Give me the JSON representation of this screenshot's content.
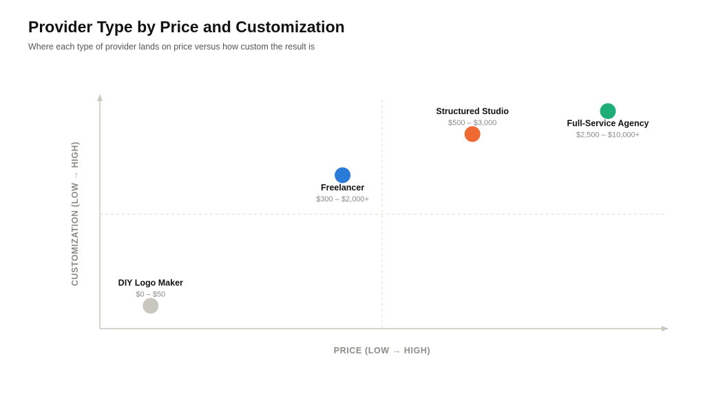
{
  "chart_data": {
    "type": "scatter",
    "title": "Provider Type by Price and Customization",
    "subtitle": "Where each type of provider lands on price versus how custom the result is",
    "xlabel": "PRICE (LOW → HIGH)",
    "ylabel": "CUSTOMIZATION (LOW → HIGH)",
    "xlim": [
      0,
      100
    ],
    "ylim": [
      0,
      100
    ],
    "quadrant_dividers": {
      "x": 50,
      "y": 50
    },
    "grid": false,
    "points": [
      {
        "name": "DIY Logo Maker",
        "price": "$0 – $50",
        "x": 9,
        "y": 10,
        "color": "#c9c8bf",
        "label_position": "above"
      },
      {
        "name": "Freelancer",
        "price": "$300 – $2,000+",
        "x": 43,
        "y": 67,
        "color": "#2a7ad8",
        "label_position": "below"
      },
      {
        "name": "Structured Studio",
        "price": "$500 – $3,000",
        "x": 66,
        "y": 85,
        "color": "#ef6a33",
        "label_position": "above"
      },
      {
        "name": "Full-Service Agency",
        "price": "$2,500 – $10,000+",
        "x": 90,
        "y": 95,
        "color": "#1fae78",
        "label_position": "below"
      }
    ]
  }
}
